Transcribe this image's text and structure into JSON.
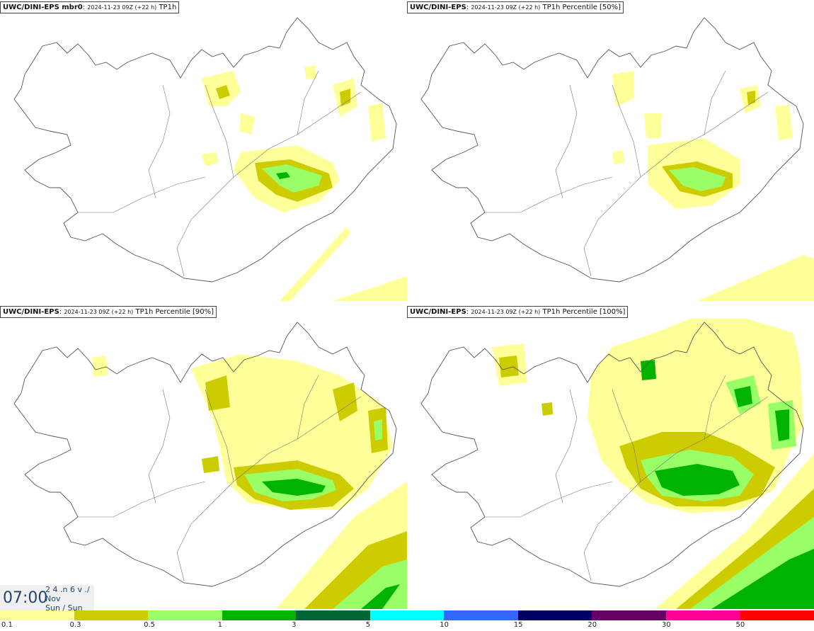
{
  "panels": [
    {
      "source": "UWC/DINI-EPS mbr0",
      "time": "2024-11-23 09Z (+22 h)",
      "field": "TP1h"
    },
    {
      "source": "UWC/DINI-EPS",
      "time": "2024-11-23 09Z (+22 h)",
      "field": "TP1h Percentile [50%]"
    },
    {
      "source": "UWC/DINI-EPS",
      "time": "2024-11-23 09Z (+22 h)",
      "field": "TP1h Percentile [90%]"
    },
    {
      "source": "UWC/DINI-EPS",
      "time": "2024-11-23 09Z (+22 h)",
      "field": "TP1h Percentile [100%]"
    }
  ],
  "clock": {
    "time": "07:00",
    "day": "2 4 .n 6 v ./",
    "month": "Nov",
    "weekday": "Sun / Sun"
  },
  "legend": {
    "colors": [
      "#ffff99",
      "#cccc00",
      "#99ff66",
      "#00b300",
      "#006633",
      "#00ffff",
      "#3366ff",
      "#000066",
      "#660066",
      "#ff0099",
      "#ff0000"
    ],
    "labels": [
      "0.1",
      "0.3",
      "0.5",
      "1",
      "3",
      "5",
      "10",
      "15",
      "20",
      "30",
      "50"
    ]
  }
}
